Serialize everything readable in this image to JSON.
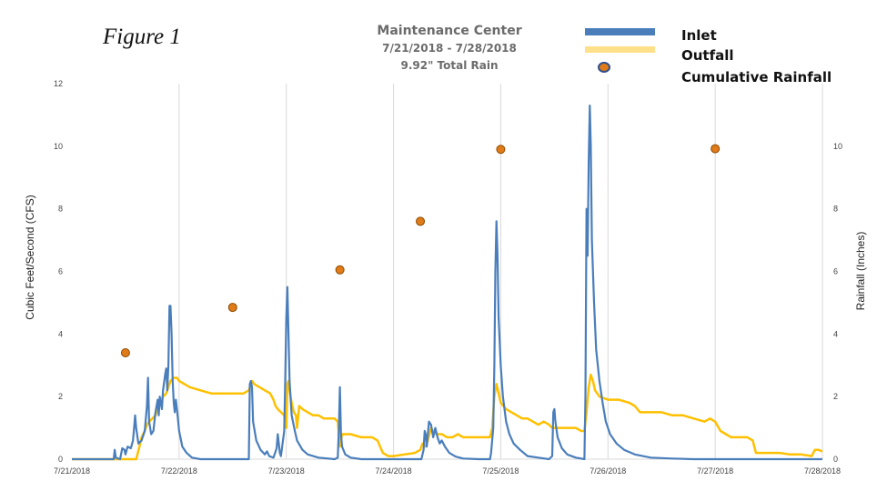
{
  "figure_label": "Figure 1",
  "chart_data": {
    "type": "line",
    "title": "Maintenance Center",
    "subtitle_dates": "7/21/2018 - 7/28/2018",
    "subtitle_rain": "9.92\" Total Rain",
    "ylabel_left": "Cubic Feet/Second (CFS)",
    "ylabel_right": "Rainfall (Inches)",
    "ylim_left": [
      0,
      12
    ],
    "ylim_right": [
      0,
      12
    ],
    "yticks_left": [
      "0",
      "2",
      "4",
      "6",
      "8",
      "10",
      "12"
    ],
    "yticks_right": [
      "0",
      "2",
      "4",
      "6",
      "8",
      "10"
    ],
    "xlim": [
      "7/21/2018",
      "7/28/2018"
    ],
    "xticks": [
      "7/21/2018",
      "7/22/2018",
      "7/23/2018",
      "7/24/2018",
      "7/25/2018",
      "7/26/2018",
      "7/27/2018",
      "7/28/2018"
    ],
    "grid": "vertical",
    "legend_position": "top-right",
    "colors": {
      "inlet": "#4a7ebb",
      "outfall": "#ffc000",
      "rainfall_fill": "#e07b18",
      "rainfall_edge": "#8a4a00"
    },
    "series": [
      {
        "name": "Inlet",
        "axis": "left",
        "points": [
          [
            0.0,
            0.0
          ],
          [
            0.39,
            0.0
          ],
          [
            0.4,
            0.3
          ],
          [
            0.41,
            0.05
          ],
          [
            0.45,
            0.0
          ],
          [
            0.47,
            0.35
          ],
          [
            0.49,
            0.3
          ],
          [
            0.5,
            0.15
          ],
          [
            0.52,
            0.4
          ],
          [
            0.55,
            0.35
          ],
          [
            0.57,
            0.6
          ],
          [
            0.58,
            1.0
          ],
          [
            0.59,
            1.4
          ],
          [
            0.6,
            1.0
          ],
          [
            0.62,
            0.5
          ],
          [
            0.65,
            0.6
          ],
          [
            0.68,
            0.9
          ],
          [
            0.7,
            1.7
          ],
          [
            0.71,
            2.6
          ],
          [
            0.72,
            1.2
          ],
          [
            0.74,
            0.8
          ],
          [
            0.76,
            0.9
          ],
          [
            0.78,
            1.5
          ],
          [
            0.8,
            1.9
          ],
          [
            0.81,
            1.4
          ],
          [
            0.82,
            2.0
          ],
          [
            0.84,
            1.6
          ],
          [
            0.85,
            2.2
          ],
          [
            0.87,
            2.7
          ],
          [
            0.88,
            2.9
          ],
          [
            0.89,
            2.2
          ],
          [
            0.9,
            3.0
          ],
          [
            0.91,
            4.9
          ],
          [
            0.92,
            4.9
          ],
          [
            0.93,
            4.0
          ],
          [
            0.94,
            2.5
          ],
          [
            0.95,
            1.8
          ],
          [
            0.96,
            1.5
          ],
          [
            0.97,
            1.9
          ],
          [
            0.98,
            1.6
          ],
          [
            1.0,
            0.9
          ],
          [
            1.03,
            0.4
          ],
          [
            1.07,
            0.2
          ],
          [
            1.12,
            0.05
          ],
          [
            1.2,
            0.0
          ],
          [
            1.65,
            0.0
          ],
          [
            1.66,
            2.4
          ],
          [
            1.67,
            2.5
          ],
          [
            1.68,
            2.3
          ],
          [
            1.69,
            1.2
          ],
          [
            1.72,
            0.6
          ],
          [
            1.76,
            0.3
          ],
          [
            1.8,
            0.15
          ],
          [
            1.82,
            0.25
          ],
          [
            1.84,
            0.1
          ],
          [
            1.88,
            0.05
          ],
          [
            1.91,
            0.35
          ],
          [
            1.92,
            0.8
          ],
          [
            1.93,
            0.5
          ],
          [
            1.94,
            0.2
          ],
          [
            1.95,
            0.1
          ],
          [
            1.98,
            0.9
          ],
          [
            1.99,
            2.5
          ],
          [
            2.0,
            4.5
          ],
          [
            2.01,
            5.5
          ],
          [
            2.02,
            4.0
          ],
          [
            2.03,
            2.5
          ],
          [
            2.05,
            1.4
          ],
          [
            2.08,
            0.9
          ],
          [
            2.1,
            0.6
          ],
          [
            2.15,
            0.3
          ],
          [
            2.2,
            0.15
          ],
          [
            2.3,
            0.05
          ],
          [
            2.45,
            0.0
          ],
          [
            2.48,
            0.05
          ],
          [
            2.49,
            1.0
          ],
          [
            2.5,
            2.3
          ],
          [
            2.51,
            0.8
          ],
          [
            2.52,
            0.4
          ],
          [
            2.55,
            0.15
          ],
          [
            2.6,
            0.05
          ],
          [
            2.7,
            0.0
          ],
          [
            2.9,
            0.0
          ],
          [
            3.0,
            0.0
          ],
          [
            3.26,
            0.0
          ],
          [
            3.28,
            0.3
          ],
          [
            3.29,
            0.9
          ],
          [
            3.3,
            0.8
          ],
          [
            3.31,
            0.4
          ],
          [
            3.33,
            1.2
          ],
          [
            3.35,
            1.1
          ],
          [
            3.37,
            0.7
          ],
          [
            3.39,
            1.0
          ],
          [
            3.41,
            0.7
          ],
          [
            3.43,
            0.5
          ],
          [
            3.45,
            0.6
          ],
          [
            3.48,
            0.4
          ],
          [
            3.52,
            0.2
          ],
          [
            3.58,
            0.08
          ],
          [
            3.65,
            0.02
          ],
          [
            3.8,
            0.0
          ],
          [
            3.9,
            0.0
          ],
          [
            3.91,
            0.2
          ],
          [
            3.93,
            1.0
          ],
          [
            3.94,
            3.0
          ],
          [
            3.95,
            6.0
          ],
          [
            3.96,
            7.6
          ],
          [
            3.97,
            6.5
          ],
          [
            3.98,
            4.5
          ],
          [
            4.0,
            3.0
          ],
          [
            4.02,
            2.0
          ],
          [
            4.05,
            1.2
          ],
          [
            4.08,
            0.8
          ],
          [
            4.12,
            0.5
          ],
          [
            4.18,
            0.3
          ],
          [
            4.25,
            0.1
          ],
          [
            4.35,
            0.05
          ],
          [
            4.45,
            0.0
          ],
          [
            4.48,
            0.1
          ],
          [
            4.49,
            1.5
          ],
          [
            4.5,
            1.6
          ],
          [
            4.51,
            1.2
          ],
          [
            4.53,
            0.7
          ],
          [
            4.57,
            0.35
          ],
          [
            4.62,
            0.15
          ],
          [
            4.7,
            0.05
          ],
          [
            4.78,
            0.0
          ],
          [
            4.79,
            2.0
          ],
          [
            4.8,
            8.0
          ],
          [
            4.81,
            6.5
          ],
          [
            4.82,
            9.5
          ],
          [
            4.83,
            11.3
          ],
          [
            4.84,
            10.0
          ],
          [
            4.85,
            7.0
          ],
          [
            4.87,
            5.0
          ],
          [
            4.89,
            3.5
          ],
          [
            4.92,
            2.5
          ],
          [
            4.95,
            1.8
          ],
          [
            4.98,
            1.2
          ],
          [
            5.02,
            0.8
          ],
          [
            5.08,
            0.5
          ],
          [
            5.15,
            0.3
          ],
          [
            5.25,
            0.15
          ],
          [
            5.4,
            0.05
          ],
          [
            5.6,
            0.02
          ],
          [
            5.8,
            0.0
          ],
          [
            7.0,
            0.0
          ]
        ]
      },
      {
        "name": "Outfall",
        "axis": "left",
        "points": [
          [
            0.0,
            0.0
          ],
          [
            0.6,
            0.0
          ],
          [
            0.63,
            0.4
          ],
          [
            0.65,
            0.7
          ],
          [
            0.68,
            0.9
          ],
          [
            0.7,
            1.1
          ],
          [
            0.72,
            1.2
          ],
          [
            0.75,
            1.3
          ],
          [
            0.78,
            1.4
          ],
          [
            0.8,
            1.6
          ],
          [
            0.82,
            1.8
          ],
          [
            0.85,
            2.0
          ],
          [
            0.88,
            2.1
          ],
          [
            0.9,
            2.3
          ],
          [
            0.92,
            2.5
          ],
          [
            0.95,
            2.6
          ],
          [
            0.98,
            2.6
          ],
          [
            1.0,
            2.5
          ],
          [
            1.05,
            2.4
          ],
          [
            1.1,
            2.3
          ],
          [
            1.2,
            2.2
          ],
          [
            1.3,
            2.1
          ],
          [
            1.4,
            2.1
          ],
          [
            1.5,
            2.1
          ],
          [
            1.6,
            2.1
          ],
          [
            1.65,
            2.2
          ],
          [
            1.68,
            2.5
          ],
          [
            1.7,
            2.4
          ],
          [
            1.75,
            2.3
          ],
          [
            1.8,
            2.2
          ],
          [
            1.85,
            2.1
          ],
          [
            1.88,
            1.9
          ],
          [
            1.9,
            1.7
          ],
          [
            1.92,
            1.6
          ],
          [
            1.95,
            1.5
          ],
          [
            1.98,
            1.4
          ],
          [
            2.0,
            1.0
          ],
          [
            2.01,
            2.4
          ],
          [
            2.02,
            2.5
          ],
          [
            2.03,
            2.2
          ],
          [
            2.05,
            1.8
          ],
          [
            2.07,
            1.5
          ],
          [
            2.09,
            1.4
          ],
          [
            2.1,
            1.0
          ],
          [
            2.12,
            1.7
          ],
          [
            2.15,
            1.6
          ],
          [
            2.2,
            1.5
          ],
          [
            2.25,
            1.4
          ],
          [
            2.3,
            1.4
          ],
          [
            2.35,
            1.3
          ],
          [
            2.4,
            1.3
          ],
          [
            2.45,
            1.3
          ],
          [
            2.48,
            1.2
          ],
          [
            2.5,
            0.4
          ],
          [
            2.52,
            0.8
          ],
          [
            2.55,
            0.8
          ],
          [
            2.6,
            0.8
          ],
          [
            2.7,
            0.7
          ],
          [
            2.8,
            0.7
          ],
          [
            2.85,
            0.6
          ],
          [
            2.9,
            0.2
          ],
          [
            2.95,
            0.1
          ],
          [
            3.0,
            0.1
          ],
          [
            3.1,
            0.15
          ],
          [
            3.2,
            0.2
          ],
          [
            3.25,
            0.3
          ],
          [
            3.27,
            0.5
          ],
          [
            3.3,
            0.4
          ],
          [
            3.32,
            0.6
          ],
          [
            3.35,
            1.0
          ],
          [
            3.37,
            0.9
          ],
          [
            3.4,
            0.8
          ],
          [
            3.45,
            0.8
          ],
          [
            3.5,
            0.7
          ],
          [
            3.55,
            0.7
          ],
          [
            3.6,
            0.8
          ],
          [
            3.65,
            0.7
          ],
          [
            3.7,
            0.7
          ],
          [
            3.8,
            0.7
          ],
          [
            3.9,
            0.7
          ],
          [
            3.92,
            1.0
          ],
          [
            3.94,
            2.0
          ],
          [
            3.96,
            2.4
          ],
          [
            3.98,
            2.1
          ],
          [
            4.0,
            1.8
          ],
          [
            4.05,
            1.6
          ],
          [
            4.1,
            1.5
          ],
          [
            4.15,
            1.4
          ],
          [
            4.2,
            1.3
          ],
          [
            4.25,
            1.3
          ],
          [
            4.3,
            1.2
          ],
          [
            4.35,
            1.1
          ],
          [
            4.4,
            1.2
          ],
          [
            4.45,
            1.1
          ],
          [
            4.48,
            1.0
          ],
          [
            4.52,
            1.0
          ],
          [
            4.6,
            1.0
          ],
          [
            4.7,
            1.0
          ],
          [
            4.75,
            0.9
          ],
          [
            4.78,
            0.9
          ],
          [
            4.8,
            1.5
          ],
          [
            4.82,
            2.3
          ],
          [
            4.84,
            2.7
          ],
          [
            4.86,
            2.5
          ],
          [
            4.88,
            2.2
          ],
          [
            4.92,
            2.0
          ],
          [
            5.0,
            1.9
          ],
          [
            5.1,
            1.9
          ],
          [
            5.2,
            1.8
          ],
          [
            5.25,
            1.7
          ],
          [
            5.3,
            1.5
          ],
          [
            5.4,
            1.5
          ],
          [
            5.5,
            1.5
          ],
          [
            5.6,
            1.4
          ],
          [
            5.7,
            1.4
          ],
          [
            5.8,
            1.3
          ],
          [
            5.9,
            1.2
          ],
          [
            5.95,
            1.3
          ],
          [
            6.0,
            1.2
          ],
          [
            6.05,
            0.9
          ],
          [
            6.1,
            0.8
          ],
          [
            6.15,
            0.7
          ],
          [
            6.2,
            0.7
          ],
          [
            6.3,
            0.7
          ],
          [
            6.35,
            0.6
          ],
          [
            6.38,
            0.2
          ],
          [
            6.4,
            0.2
          ],
          [
            6.5,
            0.2
          ],
          [
            6.6,
            0.2
          ],
          [
            6.7,
            0.15
          ],
          [
            6.8,
            0.15
          ],
          [
            6.9,
            0.1
          ],
          [
            6.93,
            0.3
          ],
          [
            6.96,
            0.3
          ],
          [
            7.0,
            0.25
          ]
        ]
      },
      {
        "name": "Cumulative Rainfall",
        "axis": "right",
        "type": "scatter",
        "points": [
          [
            0.5,
            3.4
          ],
          [
            1.5,
            4.85
          ],
          [
            2.5,
            6.05
          ],
          [
            3.25,
            7.6
          ],
          [
            4.0,
            9.9
          ],
          [
            6.0,
            9.92
          ]
        ]
      }
    ]
  }
}
